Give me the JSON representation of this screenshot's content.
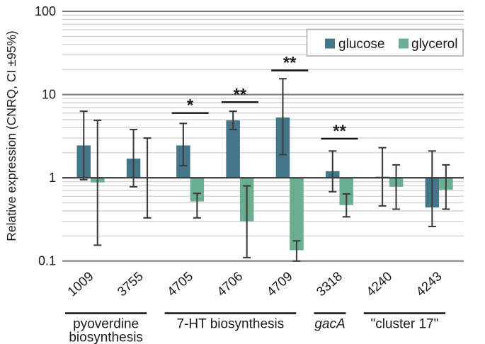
{
  "chart_data": {
    "type": "bar",
    "title": "",
    "xlabel": "",
    "ylabel": "Relative expression (CNRQ, CI ±95%)",
    "yscale": "log",
    "ylim": [
      0.1,
      100
    ],
    "ytick_labels": [
      "100",
      "10",
      "1",
      "0.1"
    ],
    "ytick_values": [
      100,
      10,
      1,
      0.1
    ],
    "grid": true,
    "baseline_value": 1,
    "categories": [
      "1009",
      "3755",
      "4705",
      "4706",
      "4709",
      "3318",
      "4240",
      "4243"
    ],
    "legend": {
      "position": "top-right",
      "entries": [
        {
          "label": "glucose",
          "color": "#447589"
        },
        {
          "label": "glycerol",
          "color": "#6cae92"
        }
      ]
    },
    "series": [
      {
        "name": "glucose",
        "color": "#447589",
        "data": [
          {
            "category": "1009",
            "value": 2.45,
            "ci_low": 0.95,
            "ci_high": 6.3
          },
          {
            "category": "3755",
            "value": 1.7,
            "ci_low": 0.78,
            "ci_high": 3.8
          },
          {
            "category": "4705",
            "value": 2.45,
            "ci_low": 1.4,
            "ci_high": 4.5
          },
          {
            "category": "4706",
            "value": 4.9,
            "ci_low": 3.8,
            "ci_high": 6.3
          },
          {
            "category": "4709",
            "value": 5.3,
            "ci_low": 1.9,
            "ci_high": 15.5
          },
          {
            "category": "3318",
            "value": 1.2,
            "ci_low": 0.68,
            "ci_high": 2.1
          },
          {
            "category": "4240",
            "value": 1.03,
            "ci_low": 0.46,
            "ci_high": 2.3
          },
          {
            "category": "4243",
            "value": 0.44,
            "ci_low": 0.26,
            "ci_high": 2.1
          }
        ]
      },
      {
        "name": "glycerol",
        "color": "#6cae92",
        "data": [
          {
            "category": "1009",
            "value": 0.88,
            "ci_low": 0.155,
            "ci_high": 4.9
          },
          {
            "category": "3755",
            "value": 1.0,
            "ci_low": 0.33,
            "ci_high": 3.0
          },
          {
            "category": "4705",
            "value": 0.52,
            "ci_low": 0.33,
            "ci_high": 0.65
          },
          {
            "category": "4706",
            "value": 0.3,
            "ci_low": 0.11,
            "ci_high": 0.8
          },
          {
            "category": "4709",
            "value": 0.135,
            "ci_low": 0.1,
            "ci_high": 0.175
          },
          {
            "category": "3318",
            "value": 0.47,
            "ci_low": 0.34,
            "ci_high": 0.64
          },
          {
            "category": "4240",
            "value": 0.78,
            "ci_low": 0.42,
            "ci_high": 1.43
          },
          {
            "category": "4243",
            "value": 0.72,
            "ci_low": 0.42,
            "ci_high": 1.43
          }
        ]
      }
    ],
    "significance_markers": [
      {
        "category": "4705",
        "label": "*",
        "line_y_value": 6.0
      },
      {
        "category": "4706",
        "label": "**",
        "line_y_value": 8.1
      },
      {
        "category": "4709",
        "label": "**",
        "line_y_value": 19.5
      },
      {
        "category": "3318",
        "label": "**",
        "line_y_value": 2.95
      }
    ],
    "category_groups": [
      {
        "lines": [
          "pyoverdine",
          "biosynthesis"
        ],
        "italic": false,
        "from": "1009",
        "to": "3755"
      },
      {
        "lines": [
          "7-HT biosynthesis"
        ],
        "italic": false,
        "from": "4705",
        "to": "4709"
      },
      {
        "lines": [
          "gacA"
        ],
        "italic": true,
        "from": "3318",
        "to": "3318"
      },
      {
        "lines": [
          "\"cluster 17\""
        ],
        "italic": false,
        "from": "4240",
        "to": "4243"
      }
    ]
  }
}
